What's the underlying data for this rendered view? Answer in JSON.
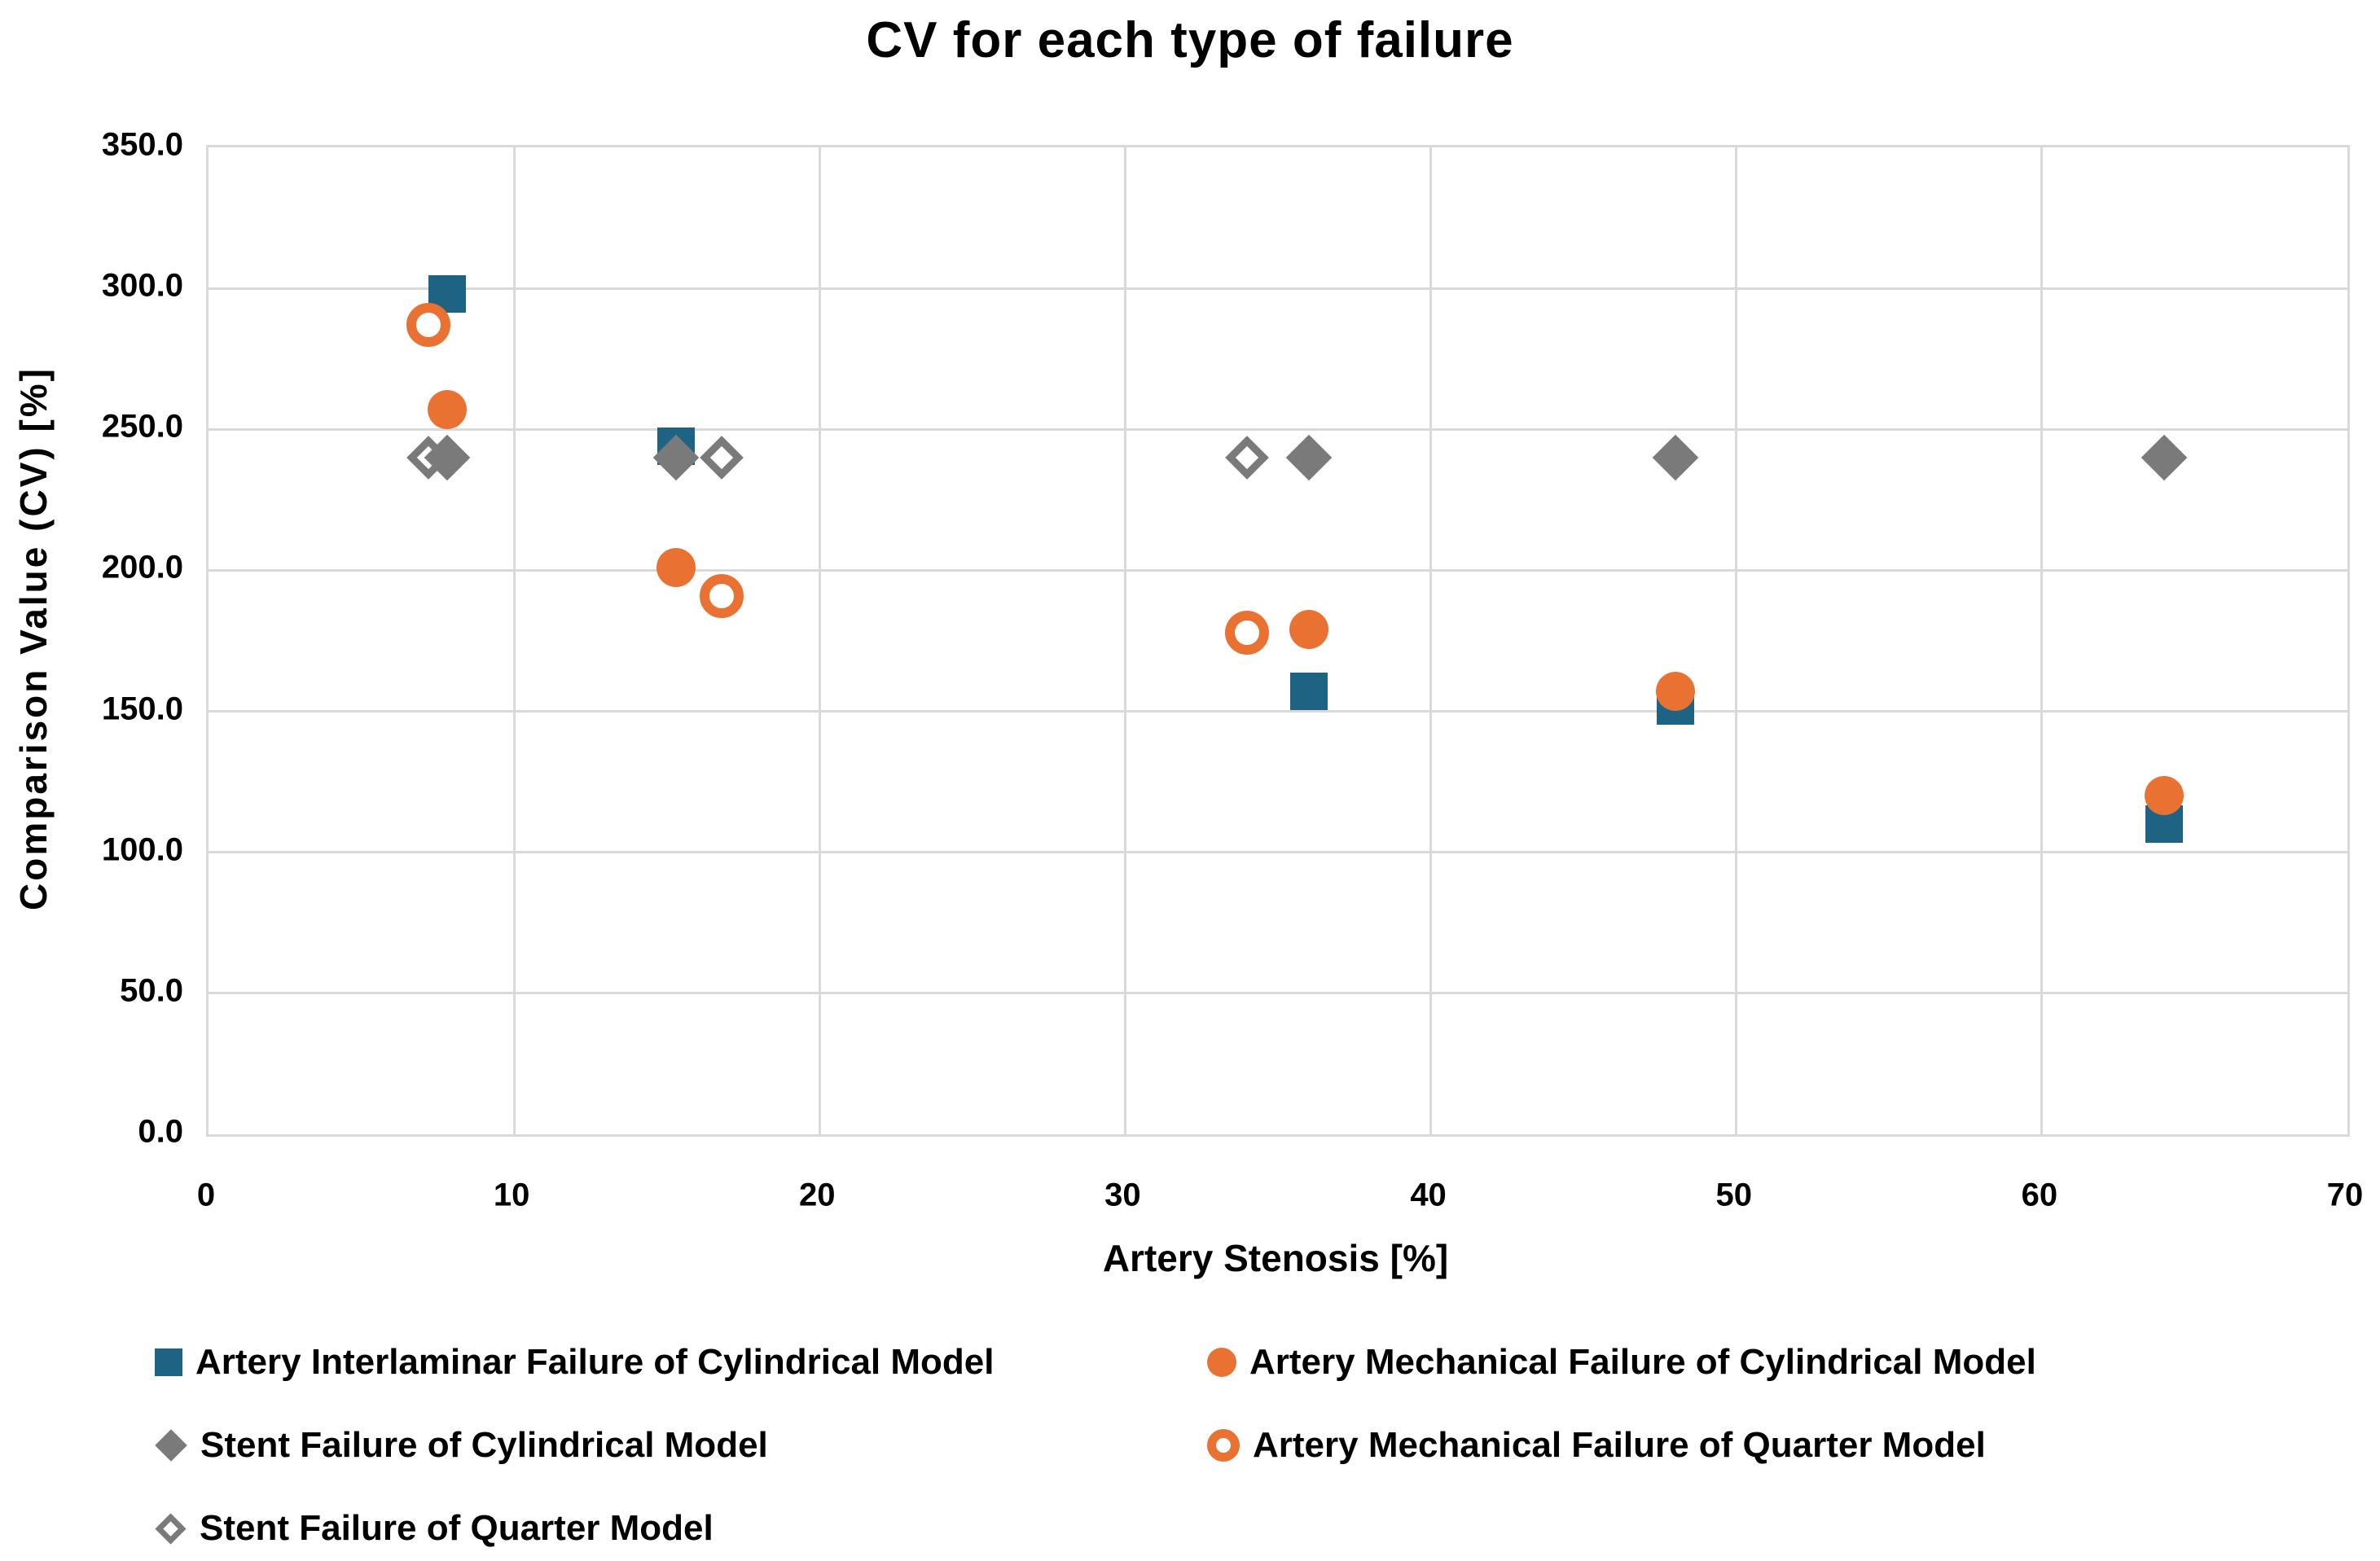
{
  "title": "CV for each type of failure",
  "chart_data": {
    "type": "scatter",
    "title": "CV for each type of failure",
    "xlabel": "Artery Stenosis [%]",
    "ylabel": "Comparison Value (CV) [%]",
    "x_axis": {
      "min": 0,
      "max": 70,
      "step": 10,
      "tick_labels": [
        "0",
        "10",
        "20",
        "30",
        "40",
        "50",
        "60",
        "70"
      ]
    },
    "y_axis": {
      "min": 0,
      "max": 350,
      "step": 50,
      "tick_labels": [
        "0.0",
        "50.0",
        "100.0",
        "150.0",
        "200.0",
        "250.0",
        "300.0",
        "350.0"
      ]
    },
    "grid": true,
    "gridline_color": "#D9D9D9",
    "legend_position": "bottom",
    "series": [
      {
        "name": "Artery Interlaminar Failure of Cylindrical Model",
        "marker": "square",
        "filled": true,
        "color": "#1F6384",
        "points": [
          [
            7.8,
            298
          ],
          [
            15.3,
            244
          ],
          [
            36,
            157
          ],
          [
            48,
            152
          ],
          [
            64,
            110
          ]
        ]
      },
      {
        "name": "Artery Mechanical Failure of Cylindrical Model",
        "marker": "circle",
        "filled": true,
        "color": "#E97132",
        "points": [
          [
            7.8,
            257
          ],
          [
            15.3,
            201
          ],
          [
            36,
            179
          ],
          [
            48,
            157
          ],
          [
            64,
            120
          ]
        ]
      },
      {
        "name": "Stent Failure of Cylindrical Model",
        "marker": "diamond",
        "filled": true,
        "color": "#7A7A7A",
        "points": [
          [
            7.8,
            240
          ],
          [
            15.3,
            240
          ],
          [
            36,
            240
          ],
          [
            48,
            240
          ],
          [
            64,
            240
          ]
        ]
      },
      {
        "name": "Artery Mechanical Failure of Quarter Model",
        "marker": "circle-open",
        "filled": false,
        "color": "#E97132",
        "points": [
          [
            7.2,
            287
          ],
          [
            16.8,
            191
          ],
          [
            34,
            178
          ]
        ]
      },
      {
        "name": "Stent Failure of Quarter Model",
        "marker": "diamond-open",
        "filled": false,
        "color": "#7A7A7A",
        "points": [
          [
            7.2,
            240
          ],
          [
            16.8,
            240
          ],
          [
            34,
            240
          ]
        ]
      }
    ]
  }
}
